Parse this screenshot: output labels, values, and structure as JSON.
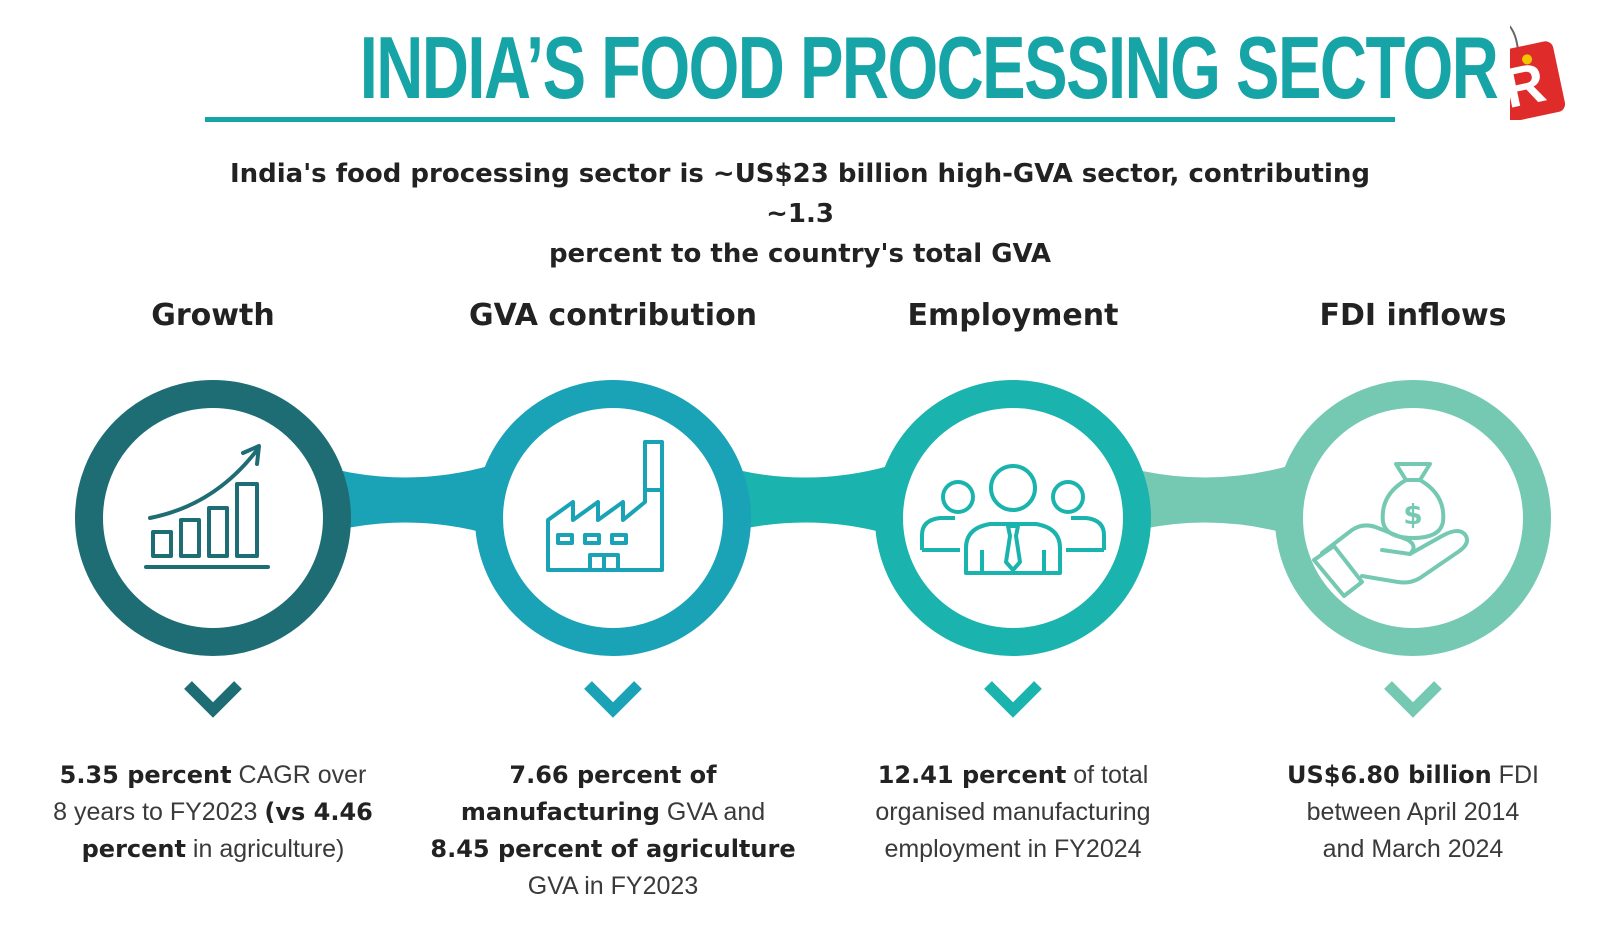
{
  "header": {
    "title": "INDIA’S FOOD PROCESSING SECTOR",
    "subtitle_line1": "India's food processing sector is ~US$23 billion high-GVA sector, contributing ~1.3",
    "subtitle_line2": "percent to the country's total GVA",
    "logo_letter": "R"
  },
  "colors": {
    "title": "#16a4a6",
    "pillar_1": "#1e6d75",
    "pillar_2": "#1aa2b7",
    "pillar_3": "#1ab3ad",
    "pillar_4": "#75c9b2"
  },
  "pillars": [
    {
      "heading": "Growth",
      "icon": "growth-chart-icon",
      "desc": [
        {
          "text": "5.35 percent",
          "bold": true
        },
        {
          "text": " CAGR over",
          "bold": false
        },
        {
          "br": true
        },
        {
          "text": "8 years to FY2023 ",
          "bold": false
        },
        {
          "text": "(vs 4.46",
          "bold": true
        },
        {
          "br": true
        },
        {
          "text": "percent",
          "bold": true
        },
        {
          "text": " in agriculture)",
          "bold": false
        }
      ]
    },
    {
      "heading": "GVA contribution",
      "icon": "factory-icon",
      "desc": [
        {
          "text": "7.66 percent of",
          "bold": true
        },
        {
          "br": true
        },
        {
          "text": "manufacturing",
          "bold": true
        },
        {
          "text": " GVA and",
          "bold": false
        },
        {
          "br": true
        },
        {
          "text": "8.45 percent of agriculture",
          "bold": true
        },
        {
          "br": true
        },
        {
          "text": "GVA in FY2023",
          "bold": false
        }
      ]
    },
    {
      "heading": "Employment",
      "icon": "people-group-icon",
      "desc": [
        {
          "text": "12.41 percent",
          "bold": true
        },
        {
          "text": " of total",
          "bold": false
        },
        {
          "br": true
        },
        {
          "text": "organised manufacturing",
          "bold": false
        },
        {
          "br": true
        },
        {
          "text": "employment in FY2024",
          "bold": false
        }
      ]
    },
    {
      "heading": "FDI inflows",
      "icon": "money-bag-hand-icon",
      "desc": [
        {
          "text": "US$6.80 billion",
          "bold": true
        },
        {
          "text": " FDI",
          "bold": false
        },
        {
          "br": true
        },
        {
          "text": "between April 2014",
          "bold": false
        },
        {
          "br": true
        },
        {
          "text": "and March 2024",
          "bold": false
        }
      ]
    }
  ]
}
